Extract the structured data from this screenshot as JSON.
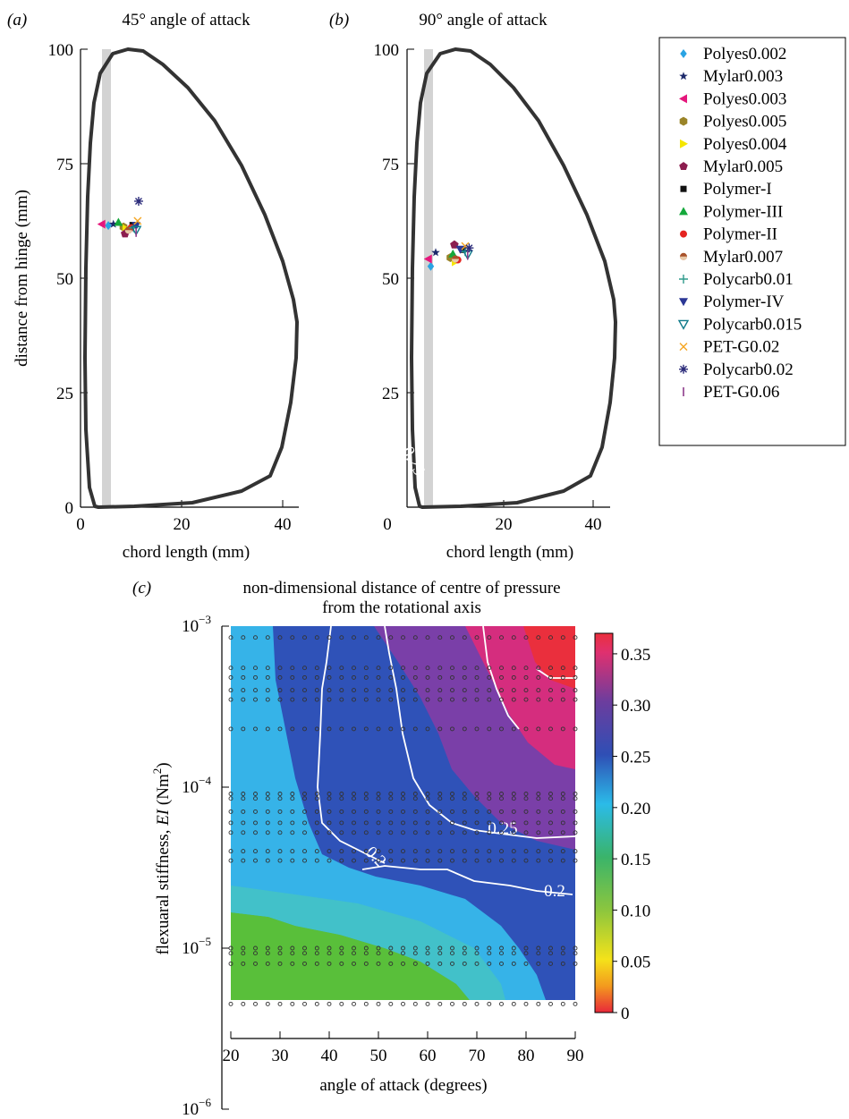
{
  "chart_data": [
    {
      "panel": "(a)",
      "type": "scatter",
      "title": "45° angle of attack",
      "xlabel": "chord length (mm)",
      "ylabel": "distance from hinge (mm)",
      "xlim": [
        0,
        45
      ],
      "ylim": [
        0,
        100
      ],
      "xticks": [
        "0",
        "20",
        "40"
      ],
      "yticks": [
        "0",
        "25",
        "50",
        "75",
        "100"
      ],
      "series": [
        {
          "name": "Polyes0.002",
          "x": 5.5,
          "y": 61.5
        },
        {
          "name": "Mylar0.003",
          "x": 6.5,
          "y": 61.8
        },
        {
          "name": "Polyes0.003",
          "x": 4.2,
          "y": 61.8
        },
        {
          "name": "Polyes0.005",
          "x": 8.5,
          "y": 61.2
        },
        {
          "name": "Polyes0.004",
          "x": 9.0,
          "y": 60.8
        },
        {
          "name": "Mylar0.005",
          "x": 8.8,
          "y": 59.7
        },
        {
          "name": "Polymer-I",
          "x": 10.3,
          "y": 61.6
        },
        {
          "name": "Polymer-III",
          "x": 7.5,
          "y": 62.2
        },
        {
          "name": "Polymer-II",
          "x": 10.0,
          "y": 61.0
        },
        {
          "name": "Mylar0.007",
          "x": 9.5,
          "y": 60.5
        },
        {
          "name": "Polycarb0.01",
          "x": 10.5,
          "y": 61.0
        },
        {
          "name": "Polymer-IV",
          "x": 11.0,
          "y": 61.5
        },
        {
          "name": "Polycarb0.015",
          "x": 11.0,
          "y": 60.5
        },
        {
          "name": "PET-G0.02",
          "x": 11.3,
          "y": 62.5
        },
        {
          "name": "Polycarb0.02",
          "x": 11.5,
          "y": 66.8
        },
        {
          "name": "PET-G0.06",
          "x": 11.0,
          "y": 60.0
        }
      ]
    },
    {
      "panel": "(b)",
      "type": "scatter",
      "title": "90° angle of attack",
      "xlabel": "chord length (mm)",
      "ylabel": "",
      "xlim": [
        0,
        45
      ],
      "ylim": [
        0,
        100
      ],
      "xticks": [
        "0",
        "20",
        "40"
      ],
      "yticks": [
        "25",
        "50",
        "75",
        "100"
      ],
      "series": [
        {
          "name": "Polyes0.002",
          "x": 7.0,
          "y": 52.6
        },
        {
          "name": "Mylar0.003",
          "x": 8.0,
          "y": 55.6
        },
        {
          "name": "Polyes0.003",
          "x": 6.5,
          "y": 54.2
        },
        {
          "name": "Polyes0.005",
          "x": 11.0,
          "y": 54.5
        },
        {
          "name": "Polyes0.004",
          "x": 12.0,
          "y": 53.6
        },
        {
          "name": "Mylar0.005",
          "x": 11.8,
          "y": 57.3
        },
        {
          "name": "Polymer-I",
          "x": 13.5,
          "y": 56.2
        },
        {
          "name": "Polymer-III",
          "x": 11.5,
          "y": 55.3
        },
        {
          "name": "Polymer-II",
          "x": 12.5,
          "y": 54.0
        },
        {
          "name": "Mylar0.007",
          "x": 12.0,
          "y": 54.2
        },
        {
          "name": "Polycarb0.01",
          "x": 14.0,
          "y": 55.8
        },
        {
          "name": "Polymer-IV",
          "x": 13.0,
          "y": 56.3
        },
        {
          "name": "Polycarb0.015",
          "x": 14.5,
          "y": 55.2
        },
        {
          "name": "PET-G0.02",
          "x": 14.0,
          "y": 57.0
        },
        {
          "name": "Polycarb0.02",
          "x": 14.8,
          "y": 56.6
        },
        {
          "name": "PET-G0.06",
          "x": 14.5,
          "y": 55.0
        }
      ]
    },
    {
      "panel": "(c)",
      "type": "heatmap",
      "title": "non-dimensional distance of centre of pressure from the rotational axis",
      "xlabel": "angle of attack (degrees)",
      "ylabel": "flexuaral stiffness, EI (Nm²)",
      "xlim": [
        20,
        90
      ],
      "ylim": [
        1e-06,
        0.001
      ],
      "xticks": [
        "20",
        "30",
        "40",
        "50",
        "60",
        "70",
        "80",
        "90"
      ],
      "yscale": "log",
      "colorbar": {
        "ticks": [
          "0",
          "0.05",
          "0.10",
          "0.15",
          "0.20",
          "0.25",
          "0.30",
          "0.35"
        ],
        "range": [
          0,
          0.37
        ]
      },
      "contour_labels": [
        "0.2",
        "0.25",
        "0.3",
        "0.35",
        "0.2",
        "0.25",
        "0.2"
      ],
      "sample_angles": [
        20,
        22.5,
        25,
        27.5,
        30,
        32.5,
        35,
        37.5,
        40,
        42.5,
        45,
        47.5,
        50,
        52.5,
        55,
        57.5,
        60,
        62.5,
        65,
        67.5,
        70,
        72.5,
        75,
        77.5,
        80,
        82.5,
        85,
        87.5,
        90
      ],
      "sample_stiffness": [
        0.00085,
        0.00055,
        0.00048,
        0.0004,
        0.00035,
        0.00023,
        9.09e-05,
        8.5e-05,
        7.04e-05,
        6e-05,
        5.22e-05,
        4e-05,
        3.5e-05,
        1e-05,
        9.3e-06,
        8e-06,
        4.5e-06
      ]
    }
  ],
  "panel_labels": {
    "a": "(a)",
    "b": "(b)",
    "c": "(c)"
  },
  "panel_c_title_lines": [
    "non-dimensional distance of centre of pressure",
    "from the rotational axis"
  ],
  "panel_c_y_ticks": {
    "base": "10",
    "exponents": [
      "−3",
      "−4",
      "−5",
      "−6"
    ]
  },
  "panel_c_ylabel_parts": {
    "pre": "flexuaral stiffness, ",
    "ei": "EI",
    "post": " (Nm",
    "sup": "2",
    "close": ")"
  },
  "legend_markers": [
    "diamond",
    "star",
    "tri-left",
    "hexagon",
    "tri-right",
    "pentagon",
    "square",
    "tri-up",
    "circle",
    "circle-half",
    "plus",
    "tri-down",
    "tri-down-open",
    "cross",
    "dash",
    "asterisk",
    "vbar"
  ],
  "colors": {
    "Polyes0.002": "#29a3e3",
    "Mylar0.003": "#1d2a6b",
    "Polyes0.003": "#e5177c",
    "Polyes0.005": "#9a8428",
    "Polyes0.004": "#f5e600",
    "Mylar0.005": "#8c1d4f",
    "Polymer-I": "#111111",
    "Polymer-III": "#14a83b",
    "Polymer-II": "#e52420",
    "Mylar0.007": "#a8522a",
    "Polycarb0.01": "#2f9a8c",
    "Polymer-IV": "#2b3795",
    "Polycarb0.015": "#0f7a8a",
    "PET-G0.02": "#f5a623",
    "Polycarb0.02": "#2b2b7a",
    "PET-G0.06": "#8e3a8a",
    "wing_outline": "#333333",
    "hinge_bar": "#d3d3d3",
    "contour_line": "#ffffff"
  }
}
